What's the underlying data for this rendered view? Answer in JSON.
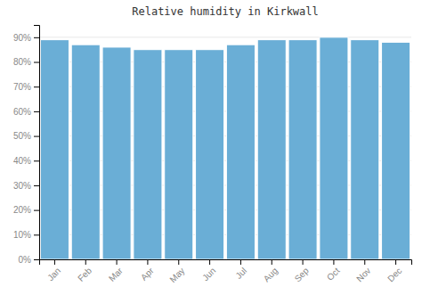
{
  "chart_data": {
    "type": "bar",
    "title": "Relative humidity in Kirkwall",
    "categories": [
      "Jan",
      "Feb",
      "Mar",
      "Apr",
      "May",
      "Jun",
      "Jul",
      "Aug",
      "Sep",
      "Oct",
      "Nov",
      "Dec"
    ],
    "values": [
      89,
      87,
      86,
      85,
      85,
      85,
      87,
      89,
      89,
      90,
      89,
      88
    ],
    "color": "#6aaed6",
    "ylim": [
      0,
      95
    ],
    "yticks": [
      {
        "value": 0,
        "label": "0%"
      },
      {
        "value": 10,
        "label": "10%"
      },
      {
        "value": 20,
        "label": "20%"
      },
      {
        "value": 30,
        "label": "30%"
      },
      {
        "value": 40,
        "label": "40%"
      },
      {
        "value": 50,
        "label": "50%"
      },
      {
        "value": 60,
        "label": "60%"
      },
      {
        "value": 70,
        "label": "70%"
      },
      {
        "value": 80,
        "label": "80%"
      },
      {
        "value": 90,
        "label": "90%"
      }
    ],
    "grid": true
  }
}
